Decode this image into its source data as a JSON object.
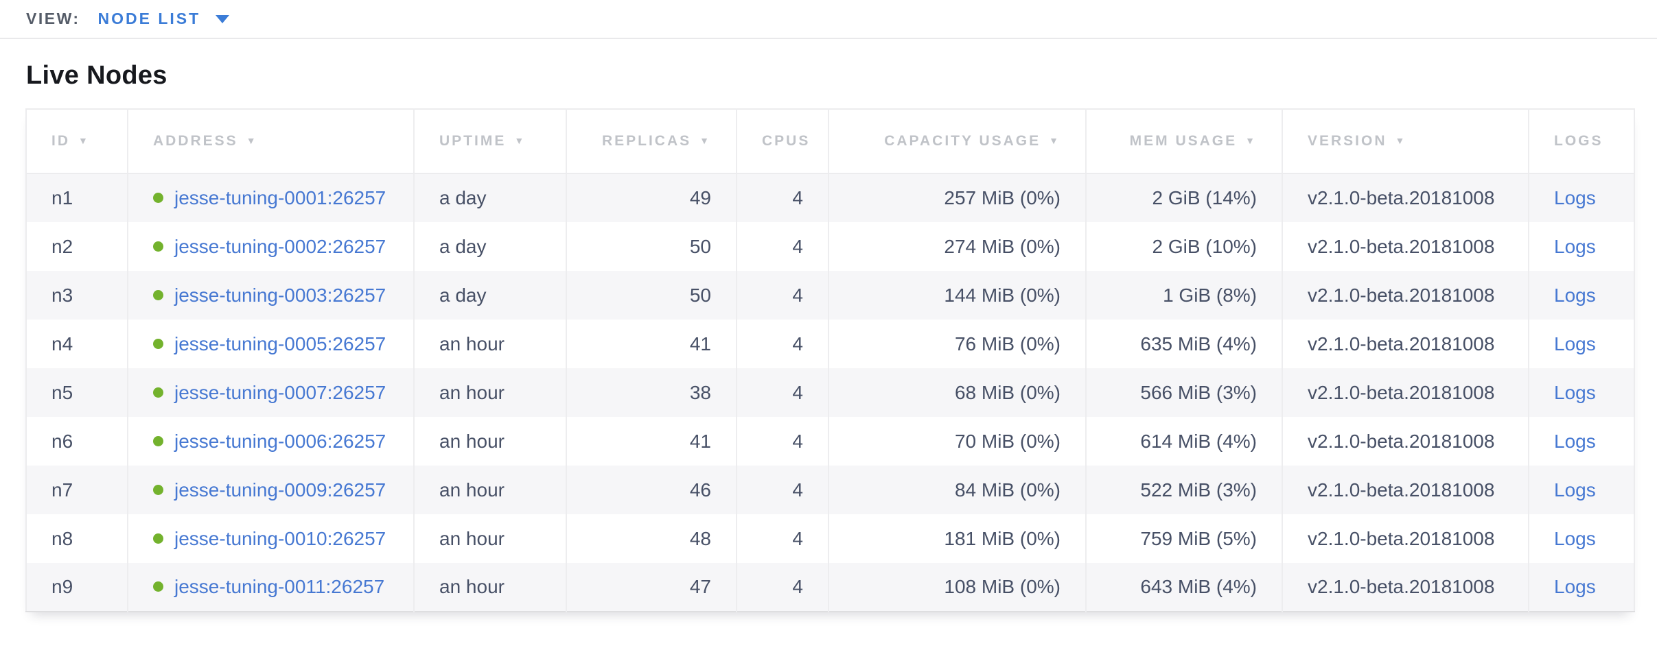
{
  "view_bar": {
    "label": "VIEW:",
    "selected_view": "NODE LIST"
  },
  "page": {
    "title": "Live Nodes"
  },
  "icons": {
    "sort_arrow": "▼",
    "dropdown_caret": "caret-down-triangle",
    "node_status_dot": "green-circle"
  },
  "colors": {
    "accent_blue": "#3b7cd7",
    "link_blue": "#4678d2",
    "healthy_green": "#73b22d",
    "header_gray": "#c0c3c8",
    "cell_text": "#475066",
    "row_stripe": "#f6f6f8"
  },
  "table": {
    "columns": [
      {
        "key": "id",
        "label": "ID",
        "sortable": true,
        "align": "left"
      },
      {
        "key": "address",
        "label": "ADDRESS",
        "sortable": true,
        "align": "left"
      },
      {
        "key": "uptime",
        "label": "UPTIME",
        "sortable": true,
        "align": "left"
      },
      {
        "key": "replicas",
        "label": "REPLICAS",
        "sortable": true,
        "align": "right"
      },
      {
        "key": "cpus",
        "label": "CPUS",
        "sortable": false,
        "align": "right"
      },
      {
        "key": "capacity",
        "label": "CAPACITY USAGE",
        "sortable": true,
        "align": "right"
      },
      {
        "key": "mem",
        "label": "MEM USAGE",
        "sortable": true,
        "align": "right"
      },
      {
        "key": "version",
        "label": "VERSION",
        "sortable": true,
        "align": "left"
      },
      {
        "key": "logs",
        "label": "LOGS",
        "sortable": false,
        "align": "left"
      }
    ],
    "rows": [
      {
        "id": "n1",
        "address": "jesse-tuning-0001:26257",
        "uptime": "a day",
        "replicas": "49",
        "cpus": "4",
        "capacity": "257 MiB (0%)",
        "mem": "2 GiB (14%)",
        "version": "v2.1.0-beta.20181008",
        "logs": "Logs"
      },
      {
        "id": "n2",
        "address": "jesse-tuning-0002:26257",
        "uptime": "a day",
        "replicas": "50",
        "cpus": "4",
        "capacity": "274 MiB (0%)",
        "mem": "2 GiB (10%)",
        "version": "v2.1.0-beta.20181008",
        "logs": "Logs"
      },
      {
        "id": "n3",
        "address": "jesse-tuning-0003:26257",
        "uptime": "a day",
        "replicas": "50",
        "cpus": "4",
        "capacity": "144 MiB (0%)",
        "mem": "1 GiB (8%)",
        "version": "v2.1.0-beta.20181008",
        "logs": "Logs"
      },
      {
        "id": "n4",
        "address": "jesse-tuning-0005:26257",
        "uptime": "an hour",
        "replicas": "41",
        "cpus": "4",
        "capacity": "76 MiB (0%)",
        "mem": "635 MiB (4%)",
        "version": "v2.1.0-beta.20181008",
        "logs": "Logs"
      },
      {
        "id": "n5",
        "address": "jesse-tuning-0007:26257",
        "uptime": "an hour",
        "replicas": "38",
        "cpus": "4",
        "capacity": "68 MiB (0%)",
        "mem": "566 MiB (3%)",
        "version": "v2.1.0-beta.20181008",
        "logs": "Logs"
      },
      {
        "id": "n6",
        "address": "jesse-tuning-0006:26257",
        "uptime": "an hour",
        "replicas": "41",
        "cpus": "4",
        "capacity": "70 MiB (0%)",
        "mem": "614 MiB (4%)",
        "version": "v2.1.0-beta.20181008",
        "logs": "Logs"
      },
      {
        "id": "n7",
        "address": "jesse-tuning-0009:26257",
        "uptime": "an hour",
        "replicas": "46",
        "cpus": "4",
        "capacity": "84 MiB (0%)",
        "mem": "522 MiB (3%)",
        "version": "v2.1.0-beta.20181008",
        "logs": "Logs"
      },
      {
        "id": "n8",
        "address": "jesse-tuning-0010:26257",
        "uptime": "an hour",
        "replicas": "48",
        "cpus": "4",
        "capacity": "181 MiB (0%)",
        "mem": "759 MiB (5%)",
        "version": "v2.1.0-beta.20181008",
        "logs": "Logs"
      },
      {
        "id": "n9",
        "address": "jesse-tuning-0011:26257",
        "uptime": "an hour",
        "replicas": "47",
        "cpus": "4",
        "capacity": "108 MiB (0%)",
        "mem": "643 MiB (4%)",
        "version": "v2.1.0-beta.20181008",
        "logs": "Logs"
      }
    ]
  }
}
